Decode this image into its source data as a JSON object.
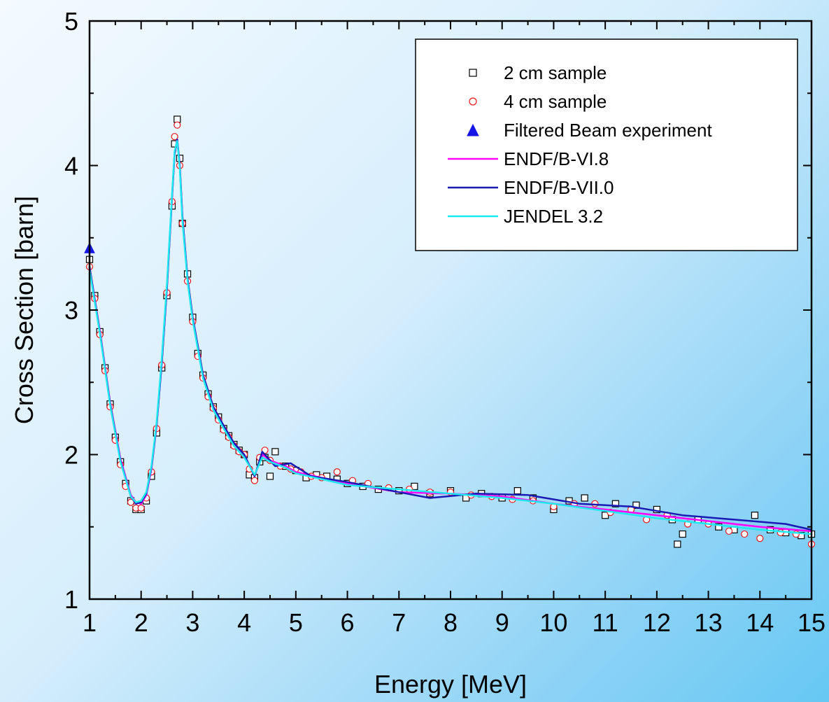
{
  "chart_data": {
    "type": "scatter",
    "title": "",
    "xlabel": "Energy [MeV]",
    "ylabel": "Cross Section [barn]",
    "xlim": [
      1,
      15
    ],
    "ylim": [
      1,
      5
    ],
    "x_ticks": [
      "1",
      "2",
      "3",
      "4",
      "5",
      "6",
      "7",
      "8",
      "9",
      "10",
      "11",
      "12",
      "13",
      "14",
      "15"
    ],
    "y_ticks": [
      "1",
      "2",
      "3",
      "4",
      "5"
    ],
    "legend_position": "top-right",
    "grid": false,
    "series": [
      {
        "name": "2 cm sample",
        "kind": "scatter",
        "marker": "square",
        "color": "#000000",
        "x": [
          1.0,
          1.1,
          1.2,
          1.3,
          1.4,
          1.5,
          1.6,
          1.7,
          1.8,
          1.9,
          2.0,
          2.1,
          2.2,
          2.3,
          2.4,
          2.5,
          2.6,
          2.65,
          2.7,
          2.75,
          2.8,
          2.9,
          3.0,
          3.1,
          3.2,
          3.3,
          3.4,
          3.5,
          3.6,
          3.7,
          3.8,
          3.9,
          4.0,
          4.1,
          4.2,
          4.3,
          4.4,
          4.5,
          4.6,
          4.8,
          5.0,
          5.2,
          5.4,
          5.6,
          5.8,
          6.0,
          6.3,
          6.6,
          7.0,
          7.3,
          7.6,
          8.0,
          8.3,
          8.6,
          9.0,
          9.3,
          9.6,
          10.0,
          10.3,
          10.6,
          11.0,
          11.2,
          11.6,
          12.0,
          12.3,
          12.4,
          12.5,
          12.8,
          13.2,
          13.5,
          13.9,
          14.2,
          14.5,
          14.8,
          15.0
        ],
        "y": [
          3.35,
          3.1,
          2.85,
          2.6,
          2.35,
          2.12,
          1.95,
          1.8,
          1.68,
          1.62,
          1.62,
          1.68,
          1.85,
          2.15,
          2.6,
          3.1,
          3.72,
          4.15,
          4.32,
          4.05,
          3.6,
          3.25,
          2.95,
          2.7,
          2.55,
          2.42,
          2.33,
          2.26,
          2.18,
          2.13,
          2.07,
          2.03,
          2.0,
          1.86,
          1.84,
          1.95,
          1.98,
          1.85,
          2.02,
          1.92,
          1.89,
          1.84,
          1.86,
          1.85,
          1.83,
          1.8,
          1.78,
          1.76,
          1.75,
          1.78,
          1.73,
          1.75,
          1.7,
          1.73,
          1.7,
          1.75,
          1.7,
          1.62,
          1.68,
          1.7,
          1.58,
          1.66,
          1.65,
          1.62,
          1.55,
          1.38,
          1.45,
          1.55,
          1.5,
          1.48,
          1.58,
          1.48,
          1.46,
          1.44,
          1.45
        ]
      },
      {
        "name": "4 cm sample",
        "kind": "scatter",
        "marker": "circle",
        "color": "#e8141c",
        "x": [
          1.0,
          1.1,
          1.2,
          1.3,
          1.4,
          1.5,
          1.6,
          1.7,
          1.8,
          1.9,
          2.0,
          2.1,
          2.2,
          2.3,
          2.4,
          2.5,
          2.6,
          2.65,
          2.7,
          2.75,
          2.8,
          2.9,
          3.0,
          3.1,
          3.2,
          3.3,
          3.4,
          3.5,
          3.6,
          3.7,
          3.8,
          3.9,
          4.0,
          4.1,
          4.2,
          4.3,
          4.4,
          4.5,
          4.7,
          4.9,
          5.1,
          5.3,
          5.5,
          5.8,
          6.1,
          6.4,
          6.8,
          7.2,
          7.6,
          8.0,
          8.4,
          8.8,
          9.2,
          9.6,
          10.0,
          10.4,
          10.8,
          11.1,
          11.5,
          11.8,
          12.2,
          12.6,
          13.0,
          13.4,
          13.7,
          14.0,
          14.4,
          14.7,
          15.0
        ],
        "y": [
          3.3,
          3.08,
          2.83,
          2.58,
          2.33,
          2.1,
          1.93,
          1.78,
          1.67,
          1.63,
          1.63,
          1.7,
          1.88,
          2.18,
          2.62,
          3.12,
          3.75,
          4.2,
          4.28,
          4.0,
          3.6,
          3.2,
          2.92,
          2.68,
          2.53,
          2.4,
          2.32,
          2.24,
          2.17,
          2.12,
          2.06,
          2.02,
          2.0,
          1.9,
          1.82,
          1.98,
          2.03,
          1.96,
          1.92,
          1.9,
          1.88,
          1.85,
          1.84,
          1.88,
          1.82,
          1.8,
          1.77,
          1.76,
          1.74,
          1.74,
          1.72,
          1.71,
          1.69,
          1.68,
          1.64,
          1.66,
          1.66,
          1.6,
          1.62,
          1.55,
          1.58,
          1.52,
          1.52,
          1.47,
          1.45,
          1.42,
          1.46,
          1.45,
          1.38
        ]
      },
      {
        "name": "Filtered Beam experiment",
        "kind": "marker",
        "marker": "triangle",
        "color": "#1515e6",
        "x": [
          1.0
        ],
        "y": [
          3.43
        ]
      },
      {
        "name": "ENDF/B-VI.8",
        "kind": "line",
        "color": "#ff00ff",
        "x": [
          1.0,
          1.2,
          1.4,
          1.6,
          1.8,
          1.9,
          2.0,
          2.1,
          2.2,
          2.3,
          2.4,
          2.5,
          2.6,
          2.65,
          2.7,
          2.75,
          2.8,
          2.9,
          3.0,
          3.2,
          3.4,
          3.6,
          3.8,
          4.0,
          4.2,
          4.35,
          4.5,
          4.8,
          5.0,
          6.0,
          7.0,
          8.0,
          9.0,
          10.0,
          11.0,
          12.0,
          13.0,
          14.0,
          15.0
        ],
        "y": [
          3.3,
          2.86,
          2.36,
          1.97,
          1.72,
          1.67,
          1.66,
          1.72,
          1.9,
          2.2,
          2.63,
          3.15,
          3.78,
          4.08,
          4.18,
          4.0,
          3.65,
          3.22,
          2.95,
          2.55,
          2.33,
          2.2,
          2.08,
          2.0,
          1.85,
          2.0,
          1.96,
          1.92,
          1.88,
          1.8,
          1.74,
          1.73,
          1.71,
          1.66,
          1.62,
          1.58,
          1.54,
          1.5,
          1.47
        ]
      },
      {
        "name": "ENDF/B-VII.0",
        "kind": "line",
        "color": "#1a1ab4",
        "x": [
          1.0,
          1.2,
          1.4,
          1.6,
          1.8,
          1.9,
          2.0,
          2.1,
          2.2,
          2.3,
          2.4,
          2.5,
          2.6,
          2.65,
          2.7,
          2.75,
          2.8,
          2.9,
          3.0,
          3.2,
          3.4,
          3.6,
          3.8,
          4.0,
          4.2,
          4.35,
          4.6,
          4.9,
          5.3,
          6.0,
          7.0,
          7.6,
          8.5,
          9.5,
          10.5,
          11.5,
          12.5,
          13.5,
          14.5,
          15.0
        ],
        "y": [
          3.3,
          2.85,
          2.35,
          1.96,
          1.71,
          1.66,
          1.67,
          1.73,
          1.91,
          2.2,
          2.63,
          3.15,
          3.78,
          4.08,
          4.18,
          4.0,
          3.65,
          3.22,
          2.95,
          2.55,
          2.33,
          2.2,
          2.08,
          2.0,
          1.85,
          2.02,
          1.92,
          1.94,
          1.85,
          1.81,
          1.74,
          1.7,
          1.73,
          1.72,
          1.66,
          1.64,
          1.58,
          1.55,
          1.52,
          1.48
        ]
      },
      {
        "name": "JENDEL 3.2",
        "kind": "line",
        "color": "#1ee8f0",
        "x": [
          1.0,
          1.2,
          1.4,
          1.6,
          1.8,
          1.9,
          2.0,
          2.1,
          2.2,
          2.3,
          2.4,
          2.5,
          2.6,
          2.65,
          2.7,
          2.75,
          2.8,
          2.9,
          3.0,
          3.2,
          3.4,
          3.6,
          3.8,
          4.0,
          4.2,
          4.35,
          4.5,
          4.8,
          5.0,
          6.0,
          7.0,
          8.0,
          9.0,
          10.0,
          11.0,
          12.0,
          13.0,
          14.0,
          15.0
        ],
        "y": [
          3.28,
          2.84,
          2.34,
          1.95,
          1.71,
          1.67,
          1.68,
          1.74,
          1.92,
          2.22,
          2.66,
          3.18,
          3.8,
          4.1,
          4.17,
          3.98,
          3.62,
          3.2,
          2.93,
          2.53,
          2.31,
          2.18,
          2.06,
          1.98,
          1.86,
          1.98,
          1.95,
          1.91,
          1.87,
          1.79,
          1.76,
          1.73,
          1.7,
          1.66,
          1.61,
          1.56,
          1.52,
          1.48,
          1.45
        ]
      }
    ]
  }
}
